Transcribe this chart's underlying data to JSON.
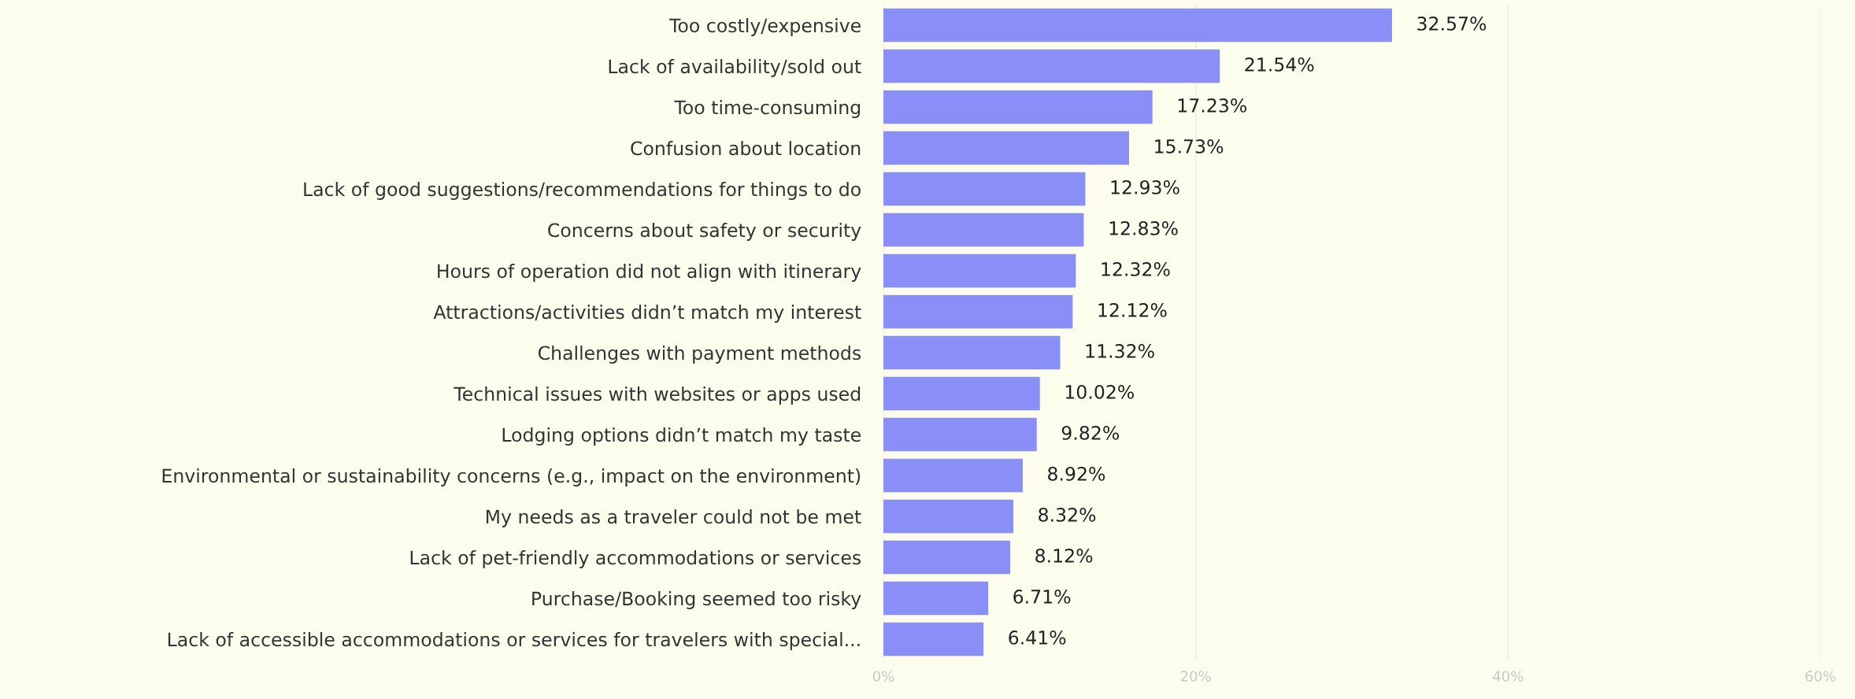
{
  "chart_data": {
    "type": "bar",
    "orientation": "horizontal",
    "categories": [
      "Too costly/expensive",
      "Lack of availability/sold out",
      "Too time-consuming",
      "Confusion about location",
      "Lack of good suggestions/recommendations for things to do",
      "Concerns about safety or security",
      "Hours of operation did not align with itinerary",
      "Attractions/activities didn’t match my interest",
      "Challenges with payment methods",
      "Technical issues with websites or apps used",
      "Lodging options didn’t match my taste",
      "Environmental or sustainability concerns (e.g., impact on the environment)",
      "My needs as a traveler could not be met",
      "Lack of pet-friendly accommodations or services",
      "Purchase/Booking seemed too risky",
      "Lack of accessible accommodations or services for travelers with special..."
    ],
    "values": [
      32.57,
      21.54,
      17.23,
      15.73,
      12.93,
      12.83,
      12.32,
      12.12,
      11.32,
      10.02,
      9.82,
      8.92,
      8.32,
      8.12,
      6.71,
      6.41
    ],
    "value_labels": [
      "32.57%",
      "21.54%",
      "17.23%",
      "15.73%",
      "12.93%",
      "12.83%",
      "12.32%",
      "12.12%",
      "11.32%",
      "10.02%",
      "9.82%",
      "8.92%",
      "8.32%",
      "8.12%",
      "6.71%",
      "6.41%"
    ],
    "color": "#8a8ef7",
    "xlim": [
      0,
      60
    ],
    "xticks": [
      {
        "value": 0,
        "label": "0%"
      },
      {
        "value": 20,
        "label": "20%"
      },
      {
        "value": 40,
        "label": "40%"
      },
      {
        "value": 60,
        "label": "60%"
      }
    ],
    "grid": "x"
  }
}
